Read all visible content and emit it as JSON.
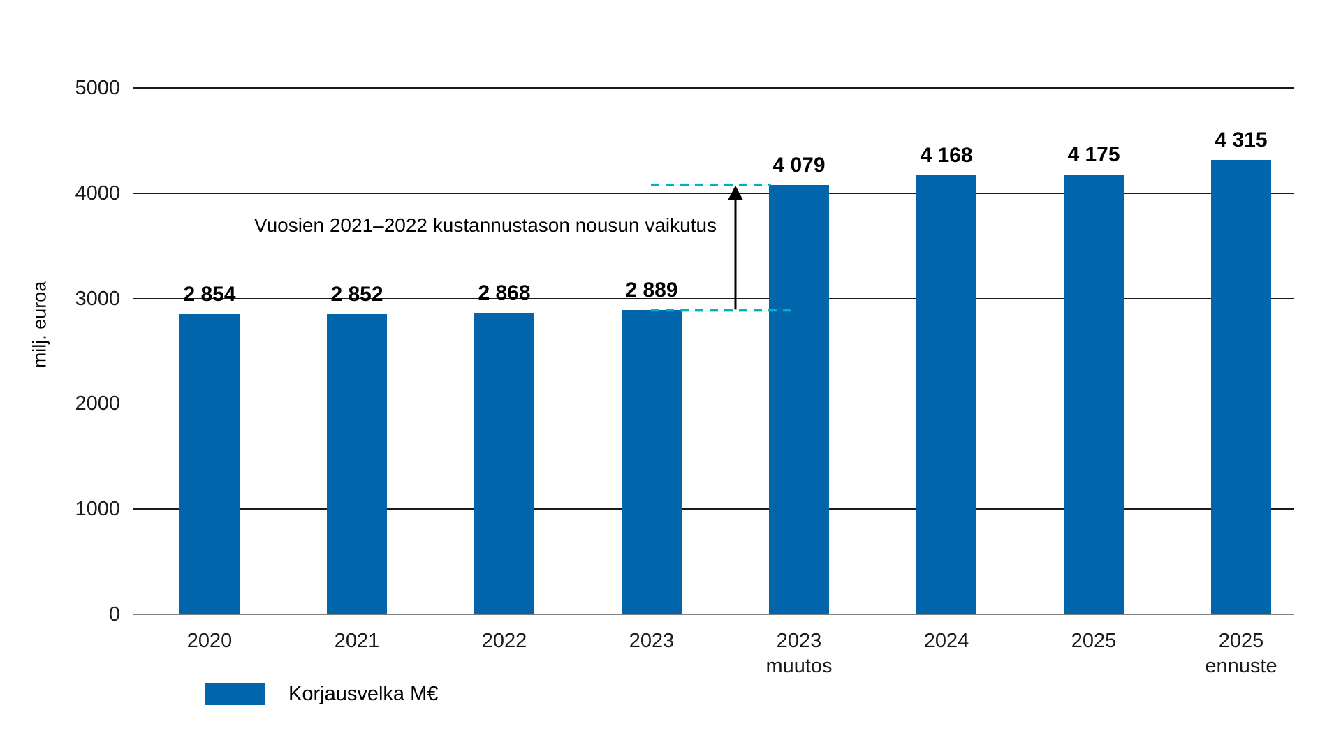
{
  "chart_data": {
    "type": "bar",
    "title": "",
    "ylabel": "milj. euroa",
    "xlabel": "",
    "ylim": [
      0,
      5000
    ],
    "ytick_values": [
      0,
      1000,
      2000,
      3000,
      4000,
      5000
    ],
    "yticks": [
      "0",
      "1000",
      "2000",
      "3000",
      "4000",
      "5000"
    ],
    "grid": true,
    "categories": [
      [
        "2020"
      ],
      [
        "2021"
      ],
      [
        "2022"
      ],
      [
        "2023"
      ],
      [
        "2023",
        "muutos"
      ],
      [
        "2024"
      ],
      [
        "2025"
      ],
      [
        "2025",
        "ennuste"
      ]
    ],
    "values": [
      2854,
      2852,
      2868,
      2889,
      4079,
      4168,
      4175,
      4315
    ],
    "value_labels": [
      "2 854",
      "2 852",
      "2 868",
      "2 889",
      "4 079",
      "4 168",
      "4 175",
      "4 315"
    ],
    "legend": {
      "label": "Korjausvelka M€",
      "position": "bottom-left"
    },
    "annotation": {
      "text": "Vuosien 2021–2022 kustannustason nousun vaikutus",
      "from_value": 2889,
      "to_value": 4079
    },
    "colors": {
      "bar": "#0065ab",
      "dashed_line": "#00b0c6",
      "gridline": "#1a1a1a",
      "axis_line": "#7f7f7f",
      "text": "#000000"
    }
  }
}
